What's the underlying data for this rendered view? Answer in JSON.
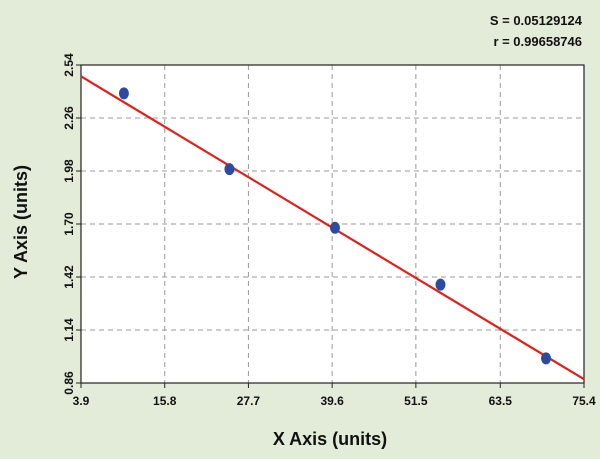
{
  "stats": {
    "s_label": "S = 0.05129124",
    "r_label": "r = 0.99658746"
  },
  "colors": {
    "background": "#e3ecd9",
    "plot_area": "#ffffff",
    "grid": "#9a9a9a",
    "fit_line": "#e0211a",
    "points": "#2c4aa0"
  },
  "chart_data": {
    "type": "scatter",
    "xlabel": "X Axis (units)",
    "ylabel": "Y Axis (units)",
    "xlim": [
      3.9,
      75.4
    ],
    "ylim": [
      0.86,
      2.54
    ],
    "x_ticks": [
      "3.9",
      "15.8",
      "27.7",
      "39.6",
      "51.5",
      "63.5",
      "75.4"
    ],
    "y_ticks": [
      "2.54",
      "2.26",
      "1.98",
      "1.70",
      "1.42",
      "1.14",
      "0.86"
    ],
    "grid": true,
    "series": [
      {
        "points": [
          {
            "x": 10.0,
            "y": 2.39
          },
          {
            "x": 25.0,
            "y": 1.99
          },
          {
            "x": 40.0,
            "y": 1.68
          },
          {
            "x": 55.0,
            "y": 1.38
          },
          {
            "x": 70.0,
            "y": 0.99
          }
        ]
      }
    ],
    "fit_line": {
      "x": [
        3.9,
        75.4
      ],
      "y": [
        2.48,
        0.88
      ]
    }
  }
}
